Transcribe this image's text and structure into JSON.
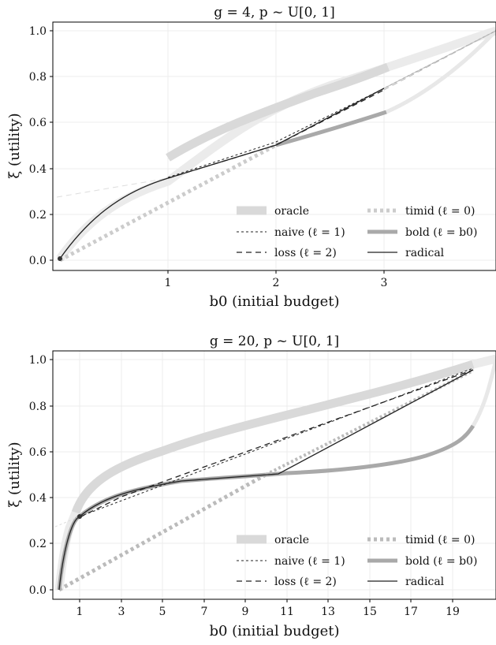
{
  "chart_data": [
    {
      "type": "line",
      "title": "g = 4, p ~ U[0, 1]",
      "xlabel": "b0 (initial budget)",
      "ylabel": "ξ (utility)",
      "xlim": [
        -0.15,
        4.0
      ],
      "ylim": [
        -0.05,
        1.04
      ],
      "xticks": [
        "1",
        "2",
        "3"
      ],
      "xtick_values": [
        1,
        2,
        3
      ],
      "yticks": [
        "0.0",
        "0.2",
        "0.4",
        "0.6",
        "0.8",
        "1.0"
      ],
      "ytick_values": [
        0,
        0.2,
        0.4,
        0.6,
        0.8,
        1.0
      ],
      "grid": true,
      "legend": "bottom-right",
      "legend_entries": [
        "oracle",
        "naive (ℓ = 1)",
        "loss (ℓ = 2)",
        "timid (ℓ = 0)",
        "bold (ℓ = b0)",
        "radical"
      ],
      "series": [
        {
          "name": "oracle",
          "x": [
            0,
            0.1,
            0.2,
            0.3,
            0.5,
            0.7,
            1,
            1.3,
            1.6,
            2,
            2.4,
            2.8,
            3,
            3.4,
            3.7,
            4
          ],
          "y": [
            0,
            0.09,
            0.15,
            0.19,
            0.26,
            0.31,
            0.45,
            0.53,
            0.59,
            0.66,
            0.72,
            0.79,
            0.85,
            0.9,
            0.94,
            1.0
          ]
        },
        {
          "name": "naive (ℓ = 1)",
          "x": [
            0,
            0.5,
            1,
            2,
            3,
            4
          ],
          "y": [
            0,
            0.25,
            0.36,
            0.54,
            0.76,
            1.0
          ]
        },
        {
          "name": "loss (ℓ = 2)",
          "x": [
            0,
            0.5,
            1,
            2,
            3,
            4
          ],
          "y": [
            0,
            0.25,
            0.36,
            0.5,
            0.75,
            1.0
          ]
        },
        {
          "name": "timid (ℓ = 0)",
          "x": [
            0,
            1,
            2,
            3,
            4
          ],
          "y": [
            0,
            0.25,
            0.5,
            0.75,
            1.0
          ]
        },
        {
          "name": "bold (ℓ = b0)",
          "x": [
            0,
            0.3,
            0.6,
            1,
            1.5,
            2,
            2.5,
            3,
            3.5,
            4
          ],
          "y": [
            0,
            0.16,
            0.27,
            0.36,
            0.43,
            0.5,
            0.57,
            0.64,
            0.8,
            1.0
          ]
        },
        {
          "name": "radical",
          "x": [
            0,
            0.3,
            0.6,
            1,
            1.5,
            2,
            2.5,
            3
          ],
          "y": [
            0,
            0.16,
            0.27,
            0.36,
            0.43,
            0.5,
            0.62,
            0.75
          ]
        }
      ]
    },
    {
      "type": "line",
      "title": "g = 20, p ~ U[0, 1]",
      "xlabel": "b0 (initial budget)",
      "ylabel": "ξ (utility)",
      "xlim": [
        -0.8,
        20.0
      ],
      "ylim": [
        -0.05,
        1.04
      ],
      "xticks": [
        "1",
        "3",
        "5",
        "7",
        "9",
        "11",
        "13",
        "15",
        "17",
        "19"
      ],
      "xtick_values": [
        1,
        3,
        5,
        7,
        9,
        11,
        13,
        15,
        17,
        19
      ],
      "yticks": [
        "0.0",
        "0.2",
        "0.4",
        "0.6",
        "0.8",
        "1.0"
      ],
      "ytick_values": [
        0,
        0.2,
        0.4,
        0.6,
        0.8,
        1.0
      ],
      "grid": true,
      "legend": "bottom-right",
      "legend_entries": [
        "oracle",
        "naive (ℓ = 1)",
        "loss (ℓ = 2)",
        "timid (ℓ = 0)",
        "bold (ℓ = b0)",
        "radical"
      ],
      "series": [
        {
          "name": "oracle",
          "x": [
            0,
            0.3,
            0.7,
            1,
            1.5,
            2,
            3,
            4,
            5,
            7,
            9,
            11,
            13,
            15,
            17,
            19,
            20
          ],
          "y": [
            0,
            0.14,
            0.27,
            0.33,
            0.39,
            0.43,
            0.5,
            0.55,
            0.59,
            0.65,
            0.71,
            0.76,
            0.81,
            0.86,
            0.91,
            0.97,
            1.0
          ]
        },
        {
          "name": "naive (ℓ = 1)",
          "x": [
            0,
            1,
            19,
            20
          ],
          "y": [
            0,
            0.31,
            0.96,
            1.0
          ]
        },
        {
          "name": "loss (ℓ = 2)",
          "x": [
            0,
            1,
            2,
            10,
            19,
            20
          ],
          "y": [
            0,
            0.31,
            0.36,
            0.62,
            0.95,
            1.0
          ]
        },
        {
          "name": "timid (ℓ = 0)",
          "x": [
            0,
            5,
            10,
            15,
            20
          ],
          "y": [
            0,
            0.25,
            0.5,
            0.75,
            1.0
          ]
        },
        {
          "name": "bold (ℓ = b0)",
          "x": [
            0,
            0.3,
            0.6,
            1,
            1.5,
            2,
            3,
            4,
            6,
            8,
            10,
            12,
            14,
            16,
            17,
            18,
            19,
            19.5,
            20
          ],
          "y": [
            0,
            0.12,
            0.23,
            0.31,
            0.36,
            0.39,
            0.43,
            0.455,
            0.475,
            0.485,
            0.5,
            0.515,
            0.53,
            0.56,
            0.59,
            0.64,
            0.73,
            0.83,
            1.0
          ]
        },
        {
          "name": "radical",
          "x": [
            0,
            0.3,
            0.6,
            1,
            1.5,
            2,
            3,
            4,
            6,
            8,
            10,
            15,
            19
          ],
          "y": [
            0,
            0.12,
            0.23,
            0.31,
            0.36,
            0.39,
            0.43,
            0.455,
            0.475,
            0.485,
            0.5,
            0.73,
            0.95
          ]
        }
      ]
    }
  ]
}
